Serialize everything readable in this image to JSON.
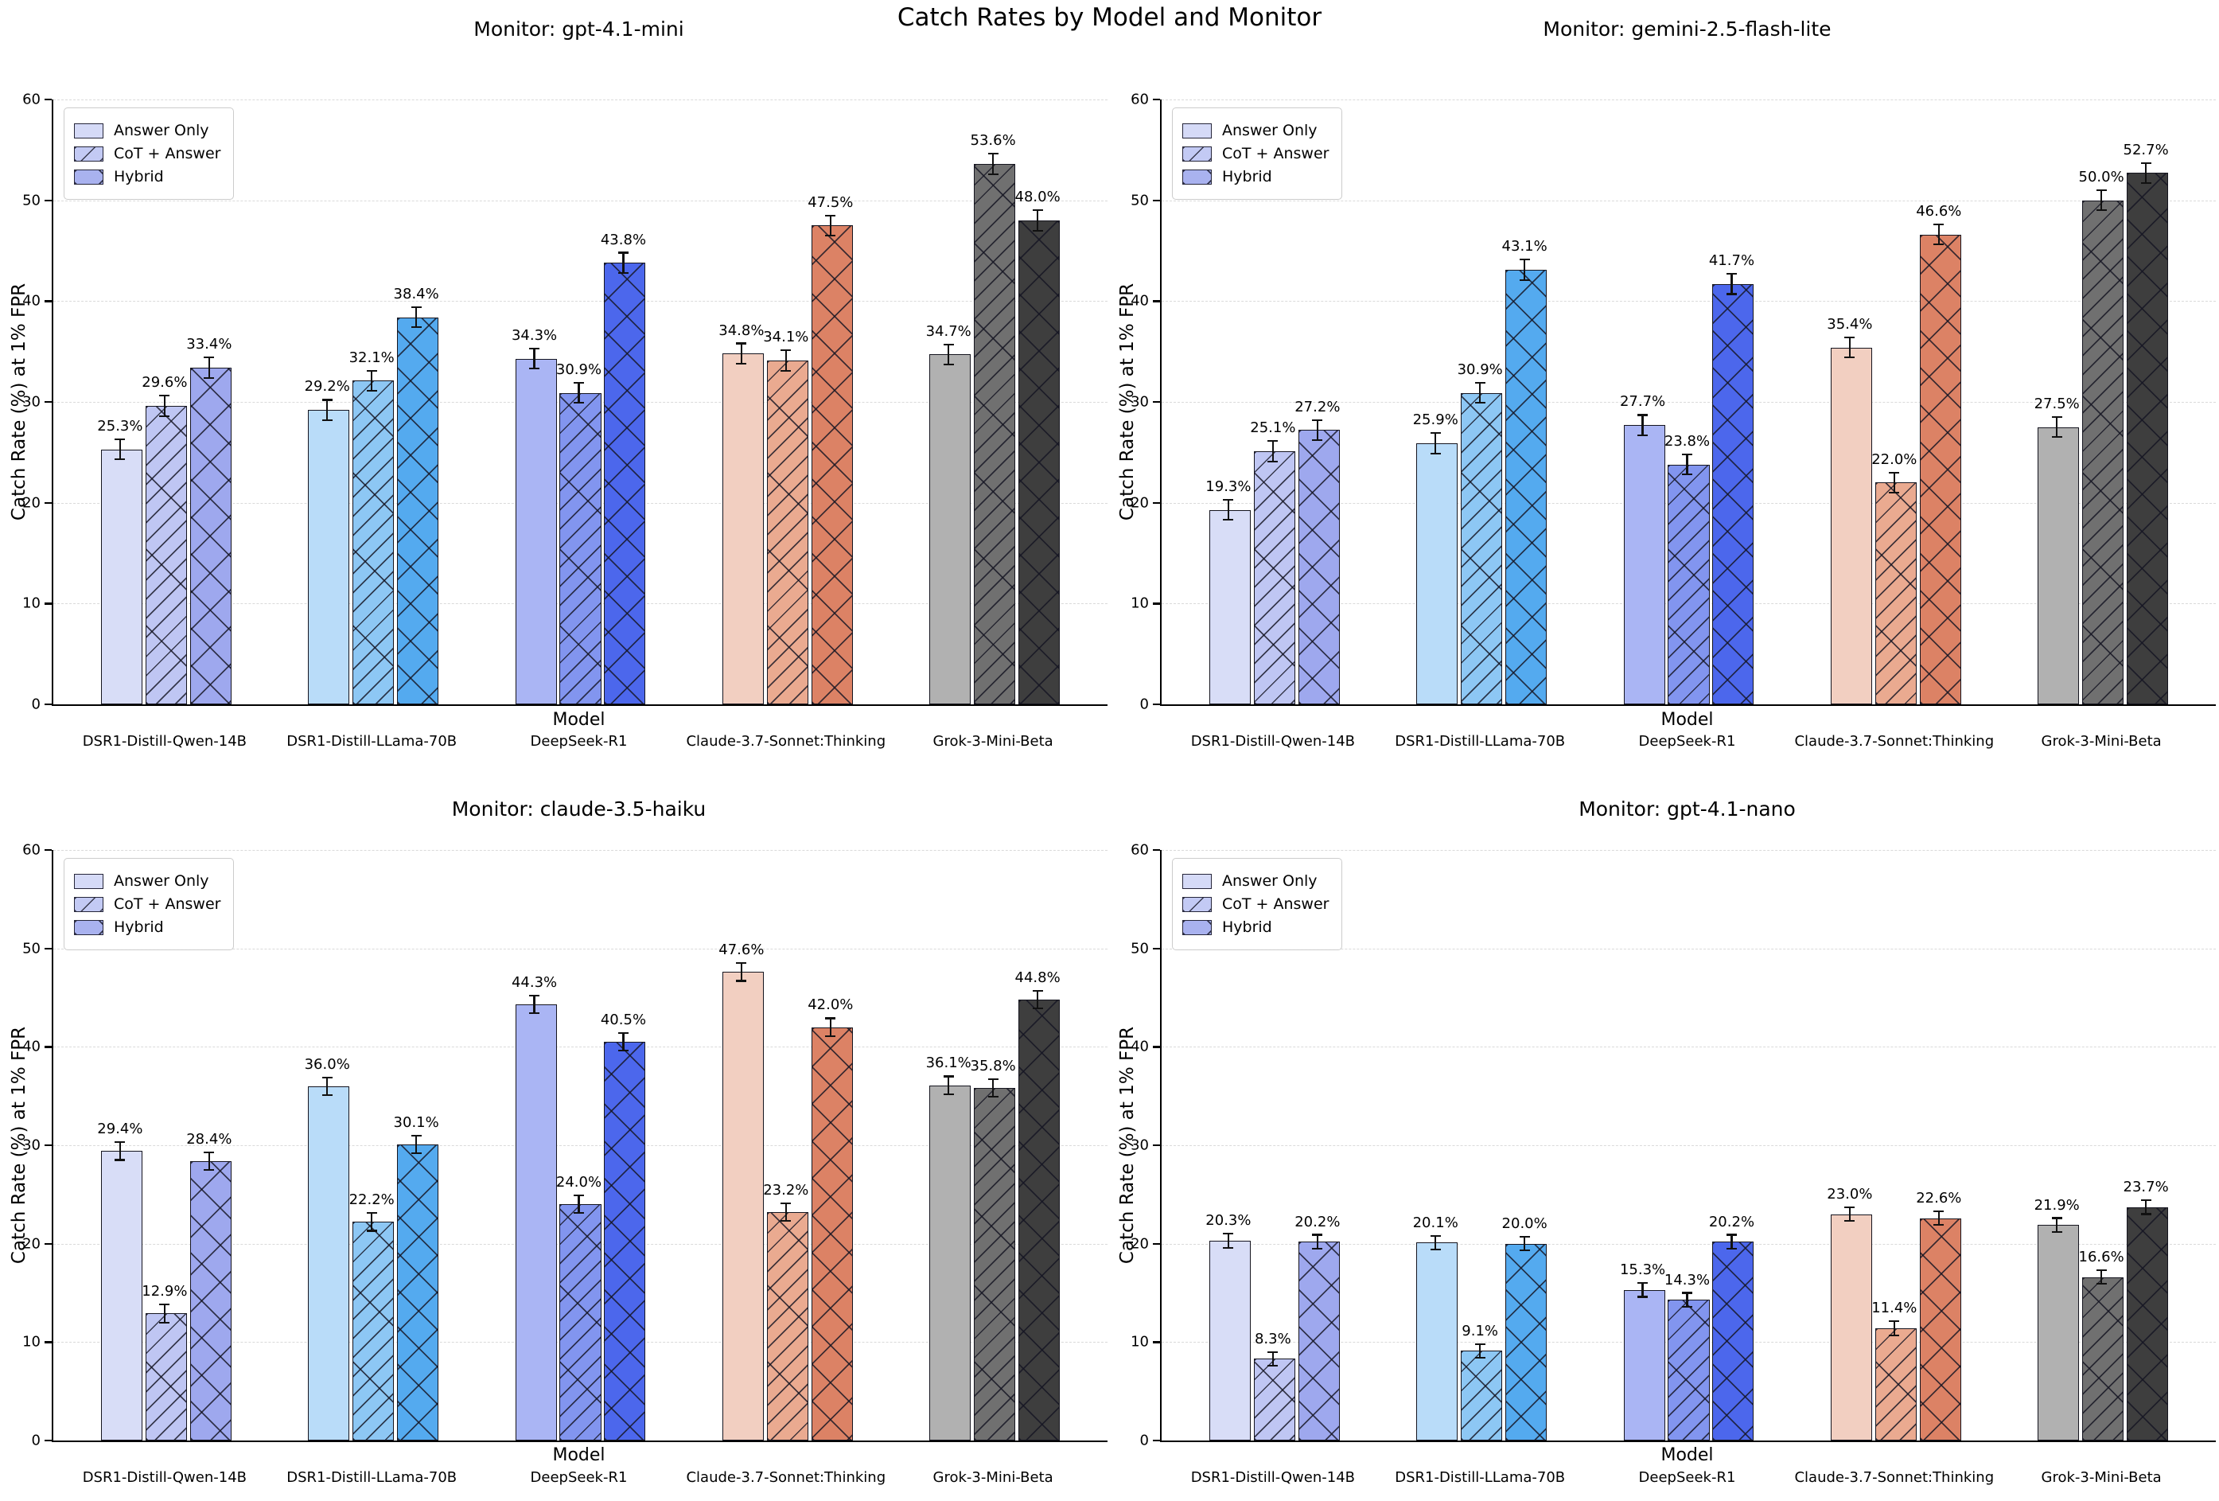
{
  "title": "Catch Rates by Model and Monitor",
  "axis": {
    "xlabel": "Model",
    "ylabel": "Catch Rate (%) at 1% FPR",
    "ylim": [
      0,
      60
    ],
    "yticks": [
      0,
      10,
      20,
      30,
      40,
      50,
      60
    ]
  },
  "legend": {
    "items": [
      {
        "label": "Answer Only",
        "pattern": "solid"
      },
      {
        "label": "CoT + Answer",
        "pattern": "diag"
      },
      {
        "label": "Hybrid",
        "pattern": "cross"
      }
    ],
    "swatch_colors": [
      "#d5daf7",
      "#c3caf4",
      "#a9b2ef"
    ],
    "position": "upper-left"
  },
  "categories": [
    "DSR1-Distill-Qwen-14B",
    "DSR1-Distill-LLama-70B",
    "DeepSeek-R1",
    "Claude-3.7-Sonnet:Thinking",
    "Grok-3-Mini-Beta"
  ],
  "category_colors": [
    {
      "answer_only": "#d8ddf7",
      "cot_answer": "#bfc6f3",
      "hybrid": "#9ea8ee"
    },
    {
      "answer_only": "#b9dcf9",
      "cot_answer": "#8dc7f4",
      "hybrid": "#54aaef"
    },
    {
      "answer_only": "#aab5f4",
      "cot_answer": "#8295ef",
      "hybrid": "#4c67ec"
    },
    {
      "answer_only": "#f2cfc1",
      "cot_answer": "#eaaa90",
      "hybrid": "#dc8265"
    },
    {
      "answer_only": "#b1b1b1",
      "cot_answer": "#707070",
      "hybrid": "#3e3e3e"
    }
  ],
  "chart_data": [
    {
      "type": "bar",
      "title": "Monitor: gpt-4.1-mini",
      "xlabel": "Model",
      "ylabel": "Catch Rate (%) at 1% FPR",
      "ylim": [
        0,
        60
      ],
      "yticks": [
        0,
        10,
        20,
        30,
        40,
        50,
        60
      ],
      "grid": "dashed-horizontal",
      "legend_position": "upper-left",
      "categories": [
        "DSR1-Distill-Qwen-14B",
        "DSR1-Distill-LLama-70B",
        "DeepSeek-R1",
        "Claude-3.7-Sonnet:Thinking",
        "Grok-3-Mini-Beta"
      ],
      "series": [
        {
          "name": "Answer Only",
          "values": [
            25.3,
            29.2,
            34.3,
            34.8,
            34.7
          ]
        },
        {
          "name": "CoT + Answer",
          "values": [
            29.6,
            32.1,
            30.9,
            34.1,
            53.6
          ]
        },
        {
          "name": "Hybrid",
          "values": [
            33.4,
            38.4,
            43.8,
            47.5,
            48.0
          ]
        }
      ],
      "error_bar_approx": 1.0,
      "value_label_format": "{value}%"
    },
    {
      "type": "bar",
      "title": "Monitor: gemini-2.5-flash-lite",
      "xlabel": "Model",
      "ylabel": "Catch Rate (%) at 1% FPR",
      "ylim": [
        0,
        60
      ],
      "yticks": [
        0,
        10,
        20,
        30,
        40,
        50,
        60
      ],
      "grid": "dashed-horizontal",
      "legend_position": "upper-left",
      "categories": [
        "DSR1-Distill-Qwen-14B",
        "DSR1-Distill-LLama-70B",
        "DeepSeek-R1",
        "Claude-3.7-Sonnet:Thinking",
        "Grok-3-Mini-Beta"
      ],
      "series": [
        {
          "name": "Answer Only",
          "values": [
            19.3,
            25.9,
            27.7,
            35.4,
            27.5
          ]
        },
        {
          "name": "CoT + Answer",
          "values": [
            25.1,
            30.9,
            23.8,
            22.0,
            50.0
          ]
        },
        {
          "name": "Hybrid",
          "values": [
            27.2,
            43.1,
            41.7,
            46.6,
            52.7
          ]
        }
      ],
      "error_bar_approx": 1.0,
      "value_label_format": "{value}%"
    },
    {
      "type": "bar",
      "title": "Monitor: claude-3.5-haiku",
      "xlabel": "Model",
      "ylabel": "Catch Rate (%) at 1% FPR",
      "ylim": [
        0,
        60
      ],
      "yticks": [
        0,
        10,
        20,
        30,
        40,
        50,
        60
      ],
      "grid": "dashed-horizontal",
      "legend_position": "upper-left",
      "categories": [
        "DSR1-Distill-Qwen-14B",
        "DSR1-Distill-LLama-70B",
        "DeepSeek-R1",
        "Claude-3.7-Sonnet:Thinking",
        "Grok-3-Mini-Beta"
      ],
      "series": [
        {
          "name": "Answer Only",
          "values": [
            29.4,
            36.0,
            44.3,
            47.6,
            36.1
          ]
        },
        {
          "name": "CoT + Answer",
          "values": [
            12.9,
            22.2,
            24.0,
            23.2,
            35.8
          ]
        },
        {
          "name": "Hybrid",
          "values": [
            28.4,
            30.1,
            40.5,
            42.0,
            44.8
          ]
        }
      ],
      "error_bar_approx": 0.9,
      "value_label_format": "{value}%"
    },
    {
      "type": "bar",
      "title": "Monitor: gpt-4.1-nano",
      "xlabel": "Model",
      "ylabel": "Catch Rate (%) at 1% FPR",
      "ylim": [
        0,
        60
      ],
      "yticks": [
        0,
        10,
        20,
        30,
        40,
        50,
        60
      ],
      "grid": "dashed-horizontal",
      "legend_position": "upper-left",
      "categories": [
        "DSR1-Distill-Qwen-14B",
        "DSR1-Distill-LLama-70B",
        "DeepSeek-R1",
        "Claude-3.7-Sonnet:Thinking",
        "Grok-3-Mini-Beta"
      ],
      "series": [
        {
          "name": "Answer Only",
          "values": [
            20.3,
            20.1,
            15.3,
            23.0,
            21.9
          ]
        },
        {
          "name": "CoT + Answer",
          "values": [
            8.3,
            9.1,
            14.3,
            11.4,
            16.6
          ]
        },
        {
          "name": "Hybrid",
          "values": [
            20.2,
            20.0,
            20.2,
            22.6,
            23.7
          ]
        }
      ],
      "error_bar_approx": 0.7,
      "value_label_format": "{value}%"
    }
  ]
}
